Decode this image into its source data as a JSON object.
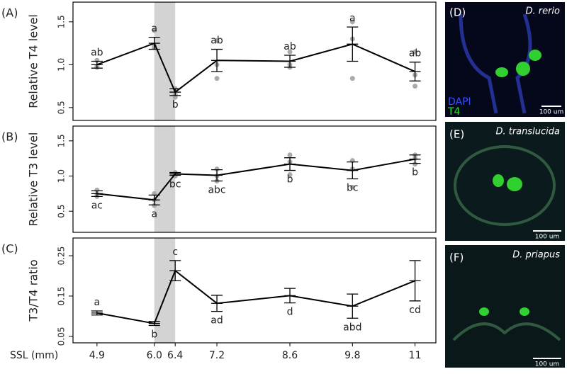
{
  "chart_data": [
    {
      "type": "line",
      "panel": "(A)",
      "ylabel": "Relative T4 level",
      "color": "#000000",
      "replicate_color": "#aaaaaa",
      "shade_color": "#d3d3d3",
      "x": [
        4.9,
        6.0,
        6.4,
        7.2,
        8.6,
        9.8,
        11
      ],
      "xlim": [
        4.44,
        11.4
      ],
      "shade": [
        6.0,
        6.4
      ],
      "values": [
        1.0,
        1.25,
        0.68,
        1.05,
        1.04,
        1.24,
        0.92
      ],
      "errors": [
        0.04,
        0.07,
        0.04,
        0.13,
        0.07,
        0.2,
        0.11
      ],
      "letters": [
        "ab",
        "a",
        "b",
        "ab",
        "ab",
        "a",
        "ab"
      ],
      "letter_positions": [
        "above",
        "above",
        "below",
        "above",
        "above",
        "above",
        "above"
      ],
      "replicates": [
        [
          1.05,
          0.97,
          0.98
        ],
        [
          1.4,
          1.22,
          1.2
        ],
        [
          0.72,
          0.65,
          0.62
        ],
        [
          1.28,
          1.0,
          0.84
        ],
        [
          1.15,
          1.0,
          0.97
        ],
        [
          1.5,
          1.3,
          0.84
        ],
        [
          1.15,
          0.88,
          0.75
        ]
      ],
      "ylim": [
        0.35,
        1.73
      ],
      "yticks": [
        {
          "value": 0.5,
          "label": "0.5"
        },
        {
          "value": 1.0,
          "label": "1.0"
        },
        {
          "value": 1.5,
          "label": "1.5"
        }
      ]
    },
    {
      "type": "line",
      "panel": "(B)",
      "ylabel": "Relative T3 level",
      "color": "#000000",
      "replicate_color": "#aaaaaa",
      "shade_color": "#d3d3d3",
      "x": [
        4.9,
        6.0,
        6.4,
        7.2,
        8.6,
        9.8,
        11
      ],
      "xlim": [
        4.44,
        11.4
      ],
      "shade": [
        6.0,
        6.4
      ],
      "values": [
        0.75,
        0.66,
        1.03,
        1.01,
        1.17,
        1.08,
        1.24
      ],
      "errors": [
        0.04,
        0.07,
        0.02,
        0.08,
        0.09,
        0.12,
        0.06
      ],
      "letters": [
        "ac",
        "a",
        "bc",
        "abc",
        "b",
        "bc",
        "b"
      ],
      "letter_positions": [
        "below",
        "below",
        "below",
        "below",
        "below",
        "below",
        "below"
      ],
      "replicates": [
        [
          0.8,
          0.74,
          0.71
        ],
        [
          0.75,
          0.66,
          0.58
        ],
        [
          1.05,
          1.02,
          1.0
        ],
        [
          1.1,
          1.0,
          0.93
        ],
        [
          1.3,
          1.2,
          1.02
        ],
        [
          1.22,
          1.1,
          0.84
        ],
        [
          1.3,
          1.25,
          1.17
        ]
      ],
      "ylim": [
        0.2,
        1.71
      ],
      "yticks": [
        {
          "value": 0.5,
          "label": "0.5"
        },
        {
          "value": 1.0,
          "label": "1.0"
        },
        {
          "value": 1.5,
          "label": "1.5"
        }
      ]
    },
    {
      "type": "line",
      "panel": "(C)",
      "ylabel": "T3/T4 ratio",
      "color": "#000000",
      "shade_color": "#d3d3d3",
      "x": [
        4.9,
        6.0,
        6.4,
        7.2,
        8.6,
        9.8,
        11
      ],
      "xlim": [
        4.44,
        11.4
      ],
      "shade": [
        6.0,
        6.4
      ],
      "values": [
        0.108,
        0.082,
        0.213,
        0.132,
        0.151,
        0.125,
        0.188
      ],
      "errors": [
        0.005,
        0.005,
        0.025,
        0.02,
        0.018,
        0.03,
        0.05
      ],
      "letters": [
        "a",
        "b",
        "c",
        "ad",
        "d",
        "abd",
        "cd"
      ],
      "letter_positions": [
        "above",
        "below",
        "above",
        "below",
        "below",
        "below",
        "below"
      ],
      "ylim": [
        0.034,
        0.294
      ],
      "yticks": [
        0.05,
        0.15,
        0.25
      ],
      "xlabel": "SSL (mm)",
      "xticks": [
        4.9,
        {
          "value": 6.0,
          "label": "6.0"
        },
        6.4,
        7.2,
        8.6,
        9.8,
        11
      ]
    }
  ],
  "images": [
    {
      "panel": "(D)",
      "species": "D. rerio",
      "stain1": "DAPI",
      "stain2": "T4",
      "scale": "100 um"
    },
    {
      "panel": "(E)",
      "species": "D. translucida",
      "scale": "100 um"
    },
    {
      "panel": "(F)",
      "species": "D. priapus",
      "scale": "100 um"
    }
  ]
}
